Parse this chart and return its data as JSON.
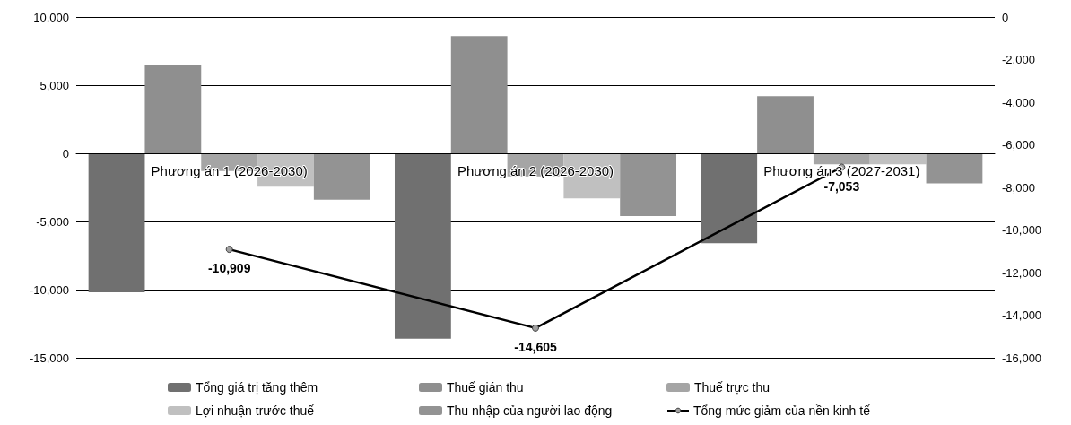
{
  "chart_data": {
    "type": "bar",
    "categories": [
      "Phương án 1 (2026-2030)",
      "Phương án 2 (2026-2030)",
      "Phương án 3 (2027-2031)"
    ],
    "series": [
      {
        "name": "Tổng giá trị tăng thêm",
        "color": "#707070",
        "values": [
          -10200,
          -13600,
          -6600
        ]
      },
      {
        "name": "Thuế gián thu",
        "color": "#8f8f8f",
        "values": [
          6500,
          8600,
          4200
        ]
      },
      {
        "name": "Thuế trực thu",
        "color": "#a5a5a5",
        "values": [
          -1300,
          -1700,
          -800
        ]
      },
      {
        "name": "Lợi nhuận trước thuế",
        "color": "#c0c0c0",
        "values": [
          -2450,
          -3300,
          -800
        ]
      },
      {
        "name": "Thu nhập của người lao động",
        "color": "#939393",
        "values": [
          -3400,
          -4600,
          -2200
        ]
      },
      {
        "name": "Tổng mức giảm của nền kinh tế",
        "type": "line",
        "axis": "y2",
        "color": "#000000",
        "marker": "circle",
        "values": [
          -10909,
          -14605,
          -7053
        ],
        "value_labels": [
          "-10,909",
          "-14,605",
          "-7,053"
        ]
      }
    ],
    "ylim": [
      -15000,
      10000
    ],
    "yticks": [
      {
        "value": -15000,
        "label": "-15,000"
      },
      {
        "value": -10000,
        "label": "-10,000"
      },
      {
        "value": -5000,
        "label": "-5,000"
      },
      0,
      {
        "value": 5000,
        "label": "5,000"
      },
      {
        "value": 10000,
        "label": "10,000"
      }
    ],
    "y2lim": [
      -16000,
      0
    ],
    "y2ticks": [
      {
        "value": -16000,
        "label": "-16,000"
      },
      {
        "value": -14000,
        "label": "-14,000"
      },
      {
        "value": -12000,
        "label": "-12,000"
      },
      {
        "value": -10000,
        "label": "-10,000"
      },
      {
        "value": -8000,
        "label": "-8,000"
      },
      {
        "value": -6000,
        "label": "-6,000"
      },
      {
        "value": -4000,
        "label": "-4,000"
      },
      {
        "value": -2000,
        "label": "-2,000"
      },
      0
    ],
    "grid": "y",
    "legend": "bottom"
  }
}
